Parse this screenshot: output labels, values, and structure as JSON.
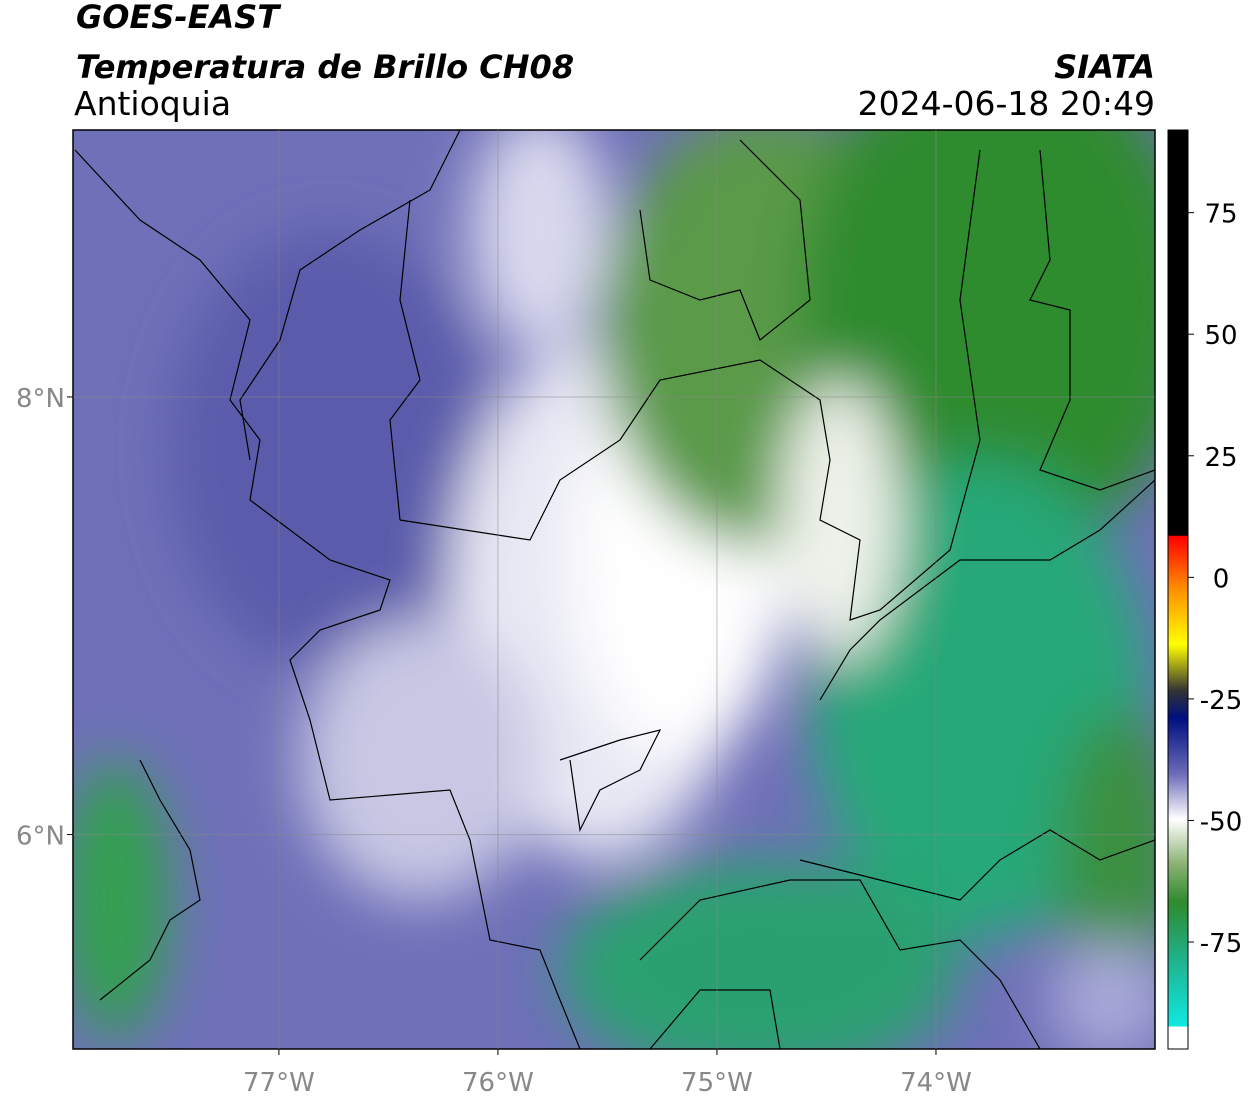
{
  "chart_data": {
    "type": "map",
    "title": "GOES-EAST",
    "subtitle": "Temperatura de Brillo CH08",
    "region": "Antioquia",
    "source": "SIATA",
    "datetime": "2024-06-18 20:49",
    "xlim": [
      -77.94,
      -73.0
    ],
    "ylim": [
      5.02,
      9.22
    ],
    "xticks": [
      {
        "value": -77,
        "label": "77°W"
      },
      {
        "value": -76,
        "label": "76°W"
      },
      {
        "value": -75,
        "label": "75°W"
      },
      {
        "value": -74,
        "label": "74°W"
      }
    ],
    "yticks": [
      {
        "value": 6,
        "label": "6°N"
      },
      {
        "value": 8,
        "label": "8°N"
      }
    ],
    "grid": true,
    "colorbar": {
      "lim": [
        -97,
        92
      ],
      "ticks": [
        -75,
        -50,
        -25,
        0,
        25,
        50,
        75
      ]
    }
  }
}
